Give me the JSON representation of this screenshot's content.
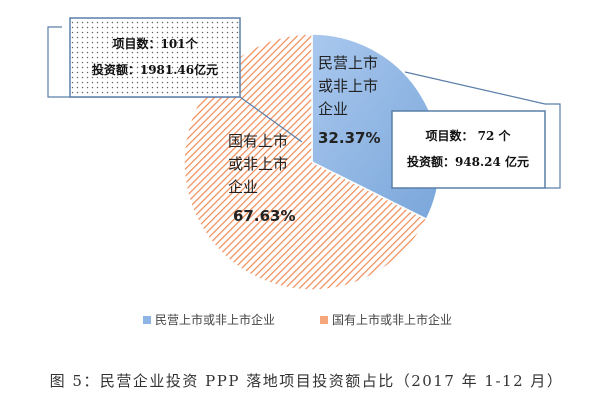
{
  "chart_data": {
    "type": "pie",
    "title": "",
    "categories": [
      "民营上市或非上市企业",
      "国有上市或非上市企业"
    ],
    "values": [
      32.37,
      67.63
    ],
    "colors": [
      "#8db4e3",
      "#f5a57a"
    ],
    "slice_labels": [
      {
        "lines": [
          "民营上市",
          "或非上市",
          "企业"
        ],
        "pct": "32.37%"
      },
      {
        "lines": [
          "国有上市",
          "或非上市",
          "企业"
        ],
        "pct": "67.63%"
      }
    ],
    "callouts": [
      {
        "count": "项目数：101个",
        "amount": "投资额：1981.46亿元"
      },
      {
        "count": "项目数： 72 个",
        "amount": "投资额：948.24 亿元"
      }
    ],
    "legend": {
      "position": "bottom",
      "entries": [
        "民营上市或非上市企业",
        "国有上市或非上市企业"
      ]
    }
  },
  "caption": "图 5：民营企业投资 PPP 落地项目投资额占比（2017 年 1-12 月）"
}
